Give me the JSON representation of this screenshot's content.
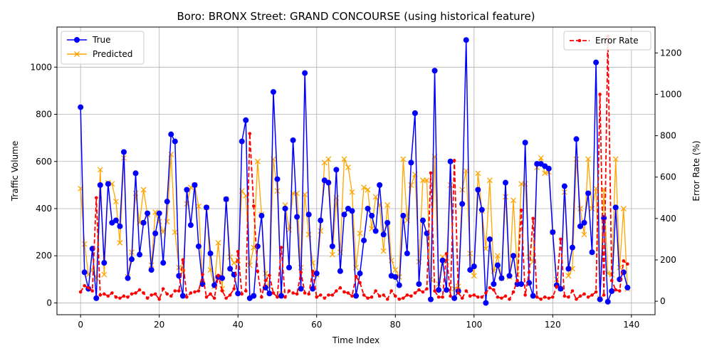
{
  "chart_data": {
    "type": "line",
    "title": "Boro: BRONX Street: GRAND CONCOURSE (using historical feature)",
    "xlabel": "Time Index",
    "ylabel": "Traffic Volume",
    "y2label": "Error Rate (%)",
    "xlim": [
      -6,
      146
    ],
    "ylim": [
      -50,
      1170
    ],
    "y2lim": [
      -65,
      1325
    ],
    "xticks": [
      0,
      20,
      40,
      60,
      80,
      100,
      120,
      140
    ],
    "yticks": [
      0,
      200,
      400,
      600,
      800,
      1000
    ],
    "y2ticks": [
      0,
      200,
      400,
      600,
      800,
      1000,
      1200
    ],
    "grid": true,
    "legend_left_placement": "top-left",
    "legend_right_placement": "top-right",
    "colors": {
      "true": "#0000ff",
      "predicted": "#ffa500",
      "error": "#ff0000"
    },
    "series": [
      {
        "name": "True",
        "axis": "left",
        "style": "solid-circle",
        "values": [
          830,
          130,
          60,
          230,
          20,
          500,
          170,
          505,
          340,
          350,
          325,
          640,
          105,
          185,
          550,
          205,
          340,
          380,
          140,
          295,
          380,
          170,
          430,
          715,
          685,
          115,
          30,
          480,
          330,
          500,
          240,
          80,
          405,
          210,
          75,
          110,
          105,
          440,
          145,
          120,
          40,
          685,
          775,
          20,
          30,
          240,
          370,
          65,
          40,
          895,
          525,
          30,
          400,
          150,
          690,
          365,
          60,
          975,
          375,
          60,
          125,
          350,
          520,
          510,
          240,
          565,
          135,
          375,
          400,
          390,
          30,
          125,
          265,
          400,
          370,
          305,
          500,
          290,
          340,
          115,
          110,
          75,
          370,
          210,
          595,
          805,
          80,
          350,
          295,
          15,
          985,
          55,
          180,
          55,
          600,
          20,
          50,
          420,
          1115,
          140,
          155,
          480,
          395,
          0,
          270,
          80,
          160,
          105,
          510,
          115,
          200,
          80,
          80,
          680,
          85,
          30,
          590,
          590,
          580,
          570,
          300,
          75,
          60,
          495,
          145,
          235,
          695,
          325,
          340,
          465,
          215,
          1020,
          15,
          360,
          5,
          50,
          405,
          100,
          130,
          65
        ]
      },
      {
        "name": "Predicted",
        "axis": "left",
        "style": "x-marker",
        "values": [
          485,
          250,
          120,
          140,
          105,
          565,
          120,
          510,
          505,
          430,
          255,
          615,
          110,
          215,
          465,
          340,
          480,
          375,
          160,
          385,
          345,
          300,
          345,
          630,
          300,
          150,
          130,
          420,
          490,
          500,
          410,
          80,
          405,
          140,
          70,
          255,
          60,
          440,
          195,
          170,
          180,
          475,
          455,
          160,
          235,
          600,
          375,
          125,
          70,
          610,
          475,
          40,
          415,
          310,
          465,
          465,
          150,
          460,
          290,
          170,
          120,
          305,
          595,
          610,
          205,
          445,
          215,
          610,
          575,
          470,
          150,
          295,
          490,
          480,
          315,
          450,
          415,
          220,
          415,
          180,
          140,
          110,
          610,
          350,
          500,
          545,
          175,
          520,
          520,
          100,
          620,
          80,
          195,
          175,
          500,
          60,
          70,
          480,
          560,
          210,
          115,
          550,
          390,
          230,
          520,
          135,
          200,
          105,
          450,
          110,
          435,
          120,
          505,
          505,
          195,
          175,
          575,
          615,
          550,
          555,
          300,
          100,
          60,
          470,
          115,
          145,
          610,
          400,
          290,
          610,
          400,
          485,
          20,
          480,
          125,
          120,
          610,
          150,
          400,
          60
        ]
      },
      {
        "name": "Error Rate",
        "axis": "right",
        "style": "dashed-dot",
        "values": [
          45,
          75,
          65,
          50,
          500,
          30,
          35,
          25,
          40,
          20,
          15,
          25,
          20,
          35,
          40,
          55,
          40,
          15,
          30,
          35,
          10,
          60,
          35,
          25,
          50,
          50,
          200,
          20,
          40,
          45,
          50,
          130,
          20,
          35,
          15,
          125,
          50,
          15,
          30,
          60,
          240,
          35,
          50,
          810,
          460,
          145,
          20,
          100,
          125,
          40,
          20,
          260,
          20,
          50,
          40,
          35,
          140,
          40,
          35,
          145,
          20,
          30,
          15,
          30,
          30,
          50,
          65,
          45,
          40,
          25,
          120,
          90,
          30,
          15,
          20,
          50,
          25,
          30,
          10,
          50,
          25,
          10,
          15,
          30,
          25,
          40,
          55,
          45,
          60,
          620,
          50,
          20,
          20,
          230,
          25,
          680,
          40,
          15,
          50,
          25,
          30,
          20,
          20,
          40,
          65,
          55,
          20,
          15,
          25,
          10,
          45,
          100,
          440,
          30,
          140,
          400,
          20,
          10,
          20,
          15,
          20,
          70,
          300,
          25,
          20,
          50,
          10,
          25,
          35,
          20,
          30,
          45,
          1000,
          30,
          1280,
          100,
          55,
          50,
          195,
          180
        ]
      }
    ]
  }
}
